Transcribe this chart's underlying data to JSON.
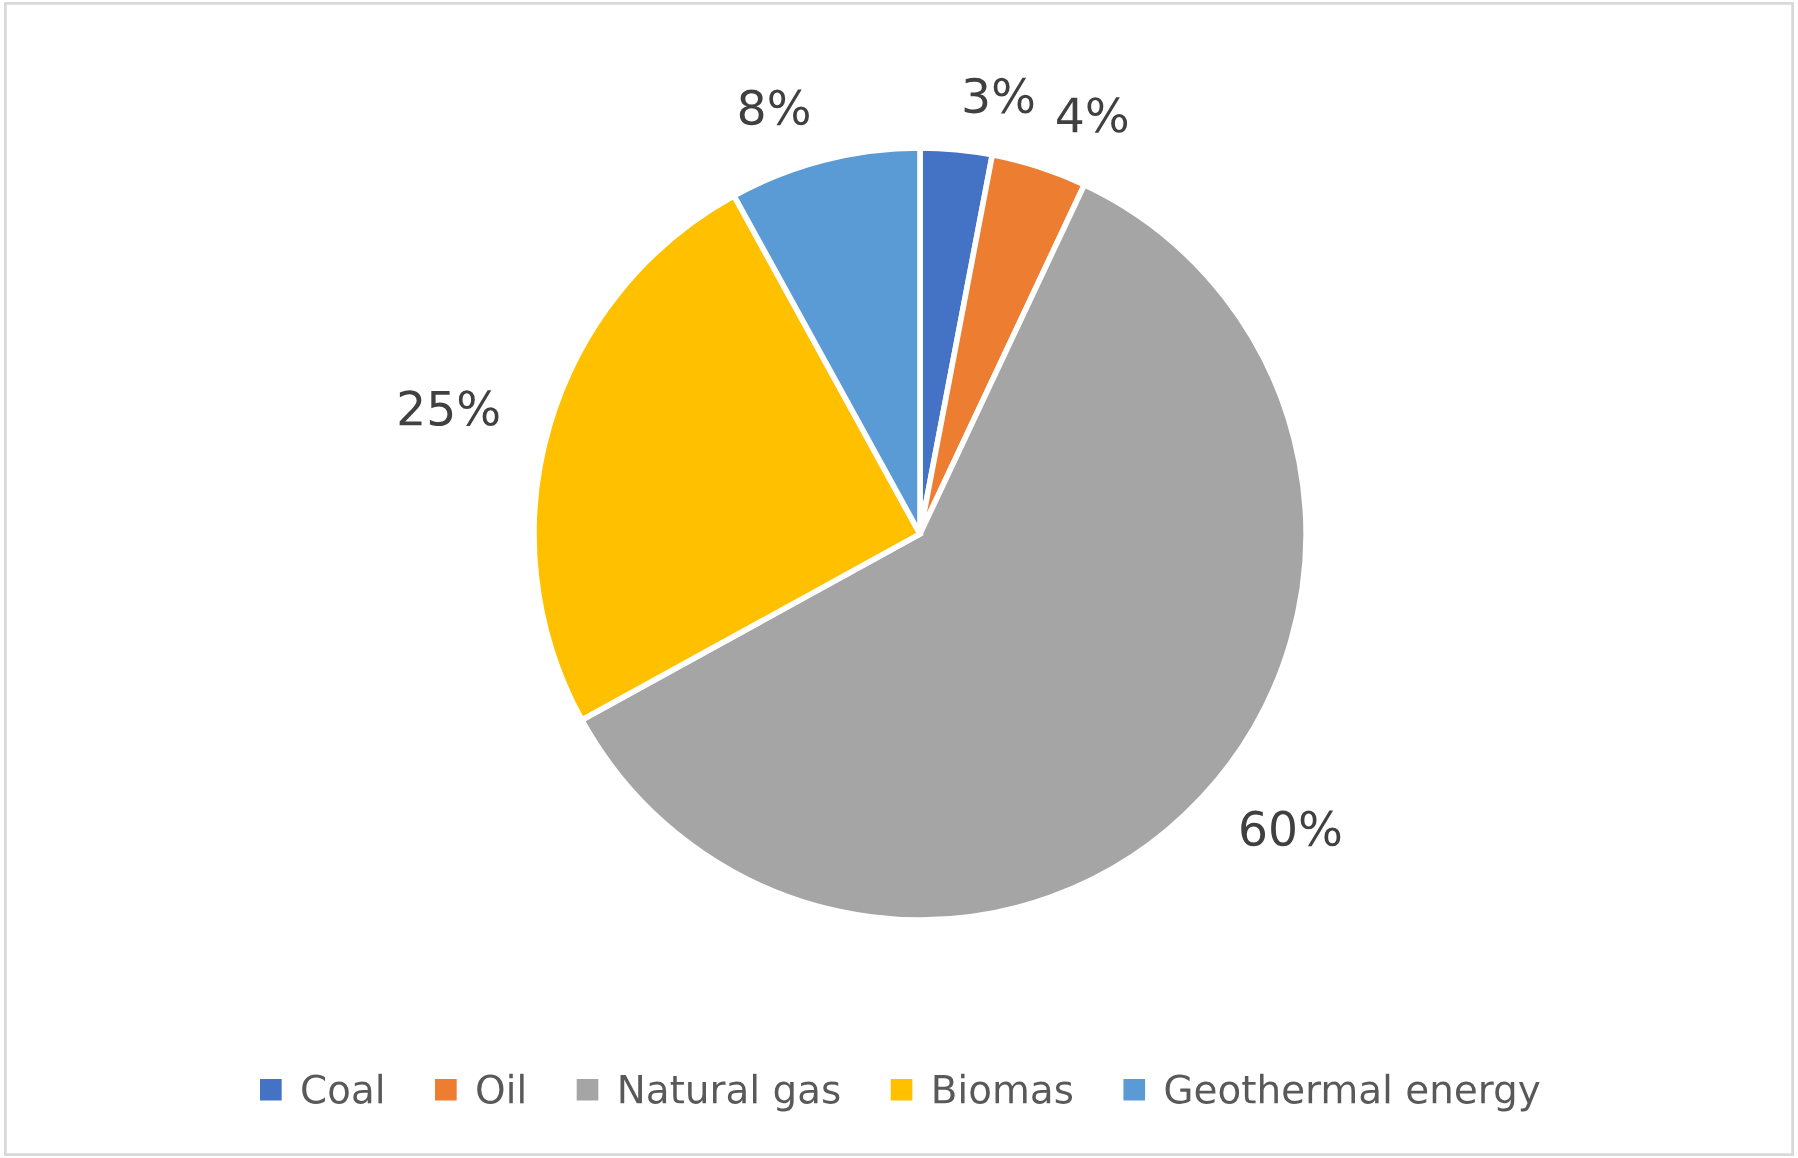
{
  "chart_data": {
    "type": "pie",
    "categories": [
      "Coal",
      "Oil",
      "Natural gas",
      "Biomas",
      "Geothermal energy"
    ],
    "values": [
      3,
      4,
      60,
      25,
      8
    ],
    "value_labels": [
      "3%",
      "4%",
      "60%",
      "25%",
      "8%"
    ],
    "colors": [
      "#4472c4",
      "#ed7d31",
      "#a5a5a5",
      "#ffc000",
      "#5b9bd5"
    ],
    "legend": "bottom"
  }
}
